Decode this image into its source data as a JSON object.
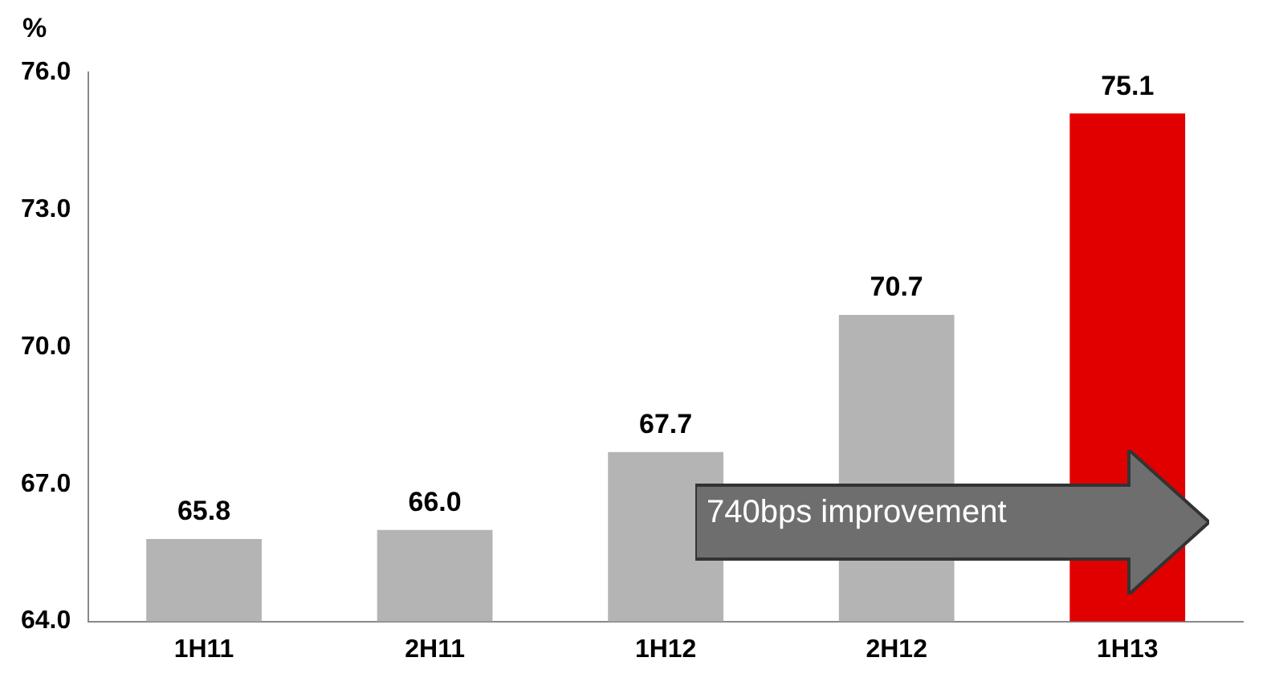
{
  "chart_data": {
    "type": "bar",
    "ylabel": "%",
    "categories": [
      "1H11",
      "2H11",
      "1H12",
      "2H12",
      "1H13"
    ],
    "values": [
      65.8,
      66.0,
      67.7,
      70.7,
      75.1
    ],
    "colors": [
      "#b4b4b4",
      "#b4b4b4",
      "#b4b4b4",
      "#b4b4b4",
      "#e00000"
    ],
    "value_labels": [
      "65.8",
      "66.0",
      "67.7",
      "70.7",
      "75.1"
    ],
    "ylim": [
      64,
      76
    ],
    "yticks": [
      {
        "value": 64,
        "label": "64.0"
      },
      {
        "value": 67,
        "label": "67.0"
      },
      {
        "value": 70,
        "label": "70.0"
      },
      {
        "value": 73,
        "label": "73.0"
      },
      {
        "value": 76,
        "label": "76.0"
      }
    ],
    "annotations": [
      "740bps improvement"
    ],
    "grid": false,
    "legend": false
  }
}
